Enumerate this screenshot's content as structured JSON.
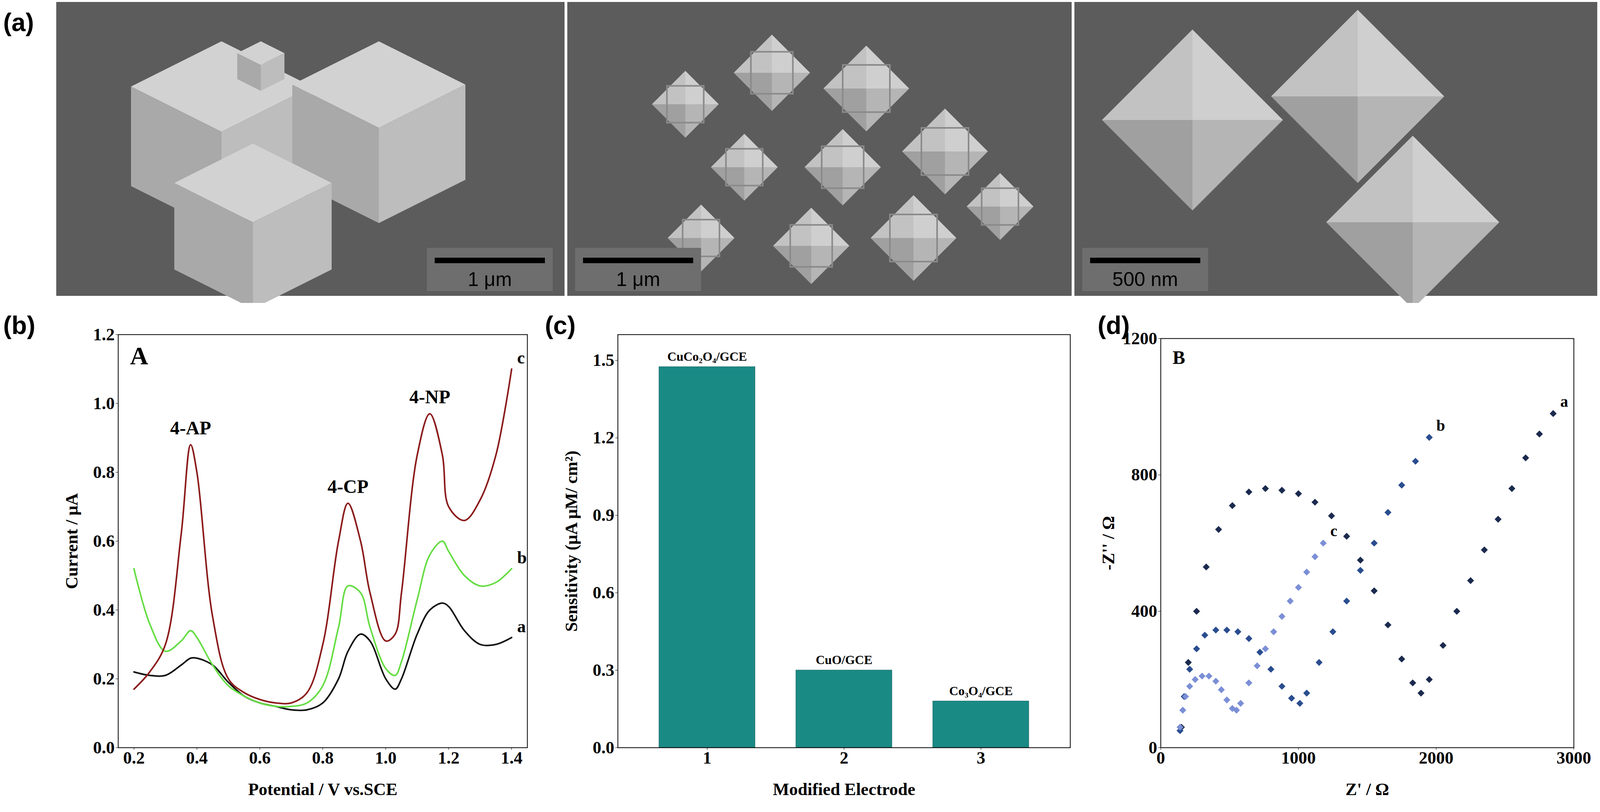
{
  "images": {
    "panel_label": "(a)",
    "scale_bars": [
      "1 μm",
      "1 μm",
      "500 nm"
    ]
  },
  "chart_data": [
    {
      "panel_label": "(b)",
      "type": "line",
      "title": "A",
      "x_label": "Potential / V vs.SCE",
      "y_label": "Current / μA",
      "line_style": "solid",
      "x": [
        0.2,
        0.25,
        0.3,
        0.35,
        0.38,
        0.4,
        0.45,
        0.5,
        0.55,
        0.6,
        0.65,
        0.7,
        0.75,
        0.8,
        0.85,
        0.88,
        0.92,
        0.95,
        1.0,
        1.03,
        1.05,
        1.1,
        1.14,
        1.18,
        1.2,
        1.25,
        1.3,
        1.35,
        1.4
      ],
      "xlim": [
        0.15,
        1.45
      ],
      "xticks": [
        0.2,
        0.4,
        0.6,
        0.8,
        {
          "value": 1,
          "label": "1.0"
        },
        1.2,
        1.4
      ],
      "ylim": [
        0,
        1.2
      ],
      "yticks": [
        {
          "value": 0,
          "label": "0.0"
        },
        0.2,
        0.4,
        0.6,
        0.8,
        {
          "value": 1,
          "label": "1.0"
        },
        1.2
      ],
      "series": [
        {
          "name": "a",
          "color": "#111111",
          "values": [
            0.22,
            0.21,
            0.21,
            0.24,
            0.26,
            0.26,
            0.24,
            0.19,
            0.15,
            0.13,
            0.12,
            0.11,
            0.11,
            0.13,
            0.2,
            0.28,
            0.33,
            0.31,
            0.2,
            0.17,
            0.2,
            0.33,
            0.4,
            0.42,
            0.41,
            0.34,
            0.3,
            0.3,
            0.32
          ]
        },
        {
          "name": "b",
          "color": "#66dd44",
          "values": [
            0.52,
            0.36,
            0.28,
            0.31,
            0.34,
            0.32,
            0.24,
            0.18,
            0.15,
            0.13,
            0.12,
            0.12,
            0.13,
            0.18,
            0.35,
            0.47,
            0.45,
            0.35,
            0.23,
            0.21,
            0.25,
            0.43,
            0.56,
            0.6,
            0.57,
            0.5,
            0.47,
            0.48,
            0.52
          ]
        },
        {
          "name": "c",
          "color": "#8b1a1a",
          "values": [
            0.17,
            0.22,
            0.3,
            0.62,
            0.88,
            0.8,
            0.38,
            0.2,
            0.16,
            0.14,
            0.13,
            0.13,
            0.16,
            0.3,
            0.6,
            0.71,
            0.6,
            0.45,
            0.31,
            0.33,
            0.45,
            0.85,
            0.97,
            0.85,
            0.7,
            0.66,
            0.72,
            0.85,
            1.1
          ]
        }
      ],
      "annotations": [
        {
          "text": "4-AP",
          "x": 0.38,
          "y": 0.88
        },
        {
          "text": "4-CP",
          "x": 0.88,
          "y": 0.71
        },
        {
          "text": "4-NP",
          "x": 1.14,
          "y": 0.97
        }
      ]
    },
    {
      "panel_label": "(c)",
      "type": "bar",
      "x_label": "Modified Electrode",
      "y_label": "Sensitivity (μA μM/ cm²)",
      "categories": [
        "1",
        "2",
        "3"
      ],
      "values": [
        1.475,
        0.3,
        0.18
      ],
      "annotations": [
        "CuCo₂O₄/GCE",
        "CuO/GCE",
        "Co₃O₄/GCE"
      ],
      "color": "#1a8a85",
      "ylim": [
        0,
        1.6
      ],
      "yticks": [
        {
          "value": 0,
          "label": "0.0"
        },
        0.3,
        0.6,
        0.9,
        1.2,
        1.5
      ]
    },
    {
      "panel_label": "(d)",
      "type": "scatter",
      "title": "B",
      "x_label": "Z' / Ω",
      "y_label": "-Z'' / Ω",
      "marker": "diamond",
      "xlim": [
        0,
        3000
      ],
      "xticks": [
        0,
        1000,
        2000,
        3000
      ],
      "ylim": [
        0,
        1200
      ],
      "yticks": [
        0,
        400,
        800,
        1200
      ],
      "series": [
        {
          "name": "a",
          "color": "#1b2a4e",
          "x": [
            150,
            200,
            260,
            330,
            420,
            520,
            640,
            760,
            880,
            1000,
            1120,
            1240,
            1350,
            1450,
            1550,
            1650,
            1750,
            1830,
            1890,
            1950,
            2050,
            2150,
            2250,
            2350,
            2450,
            2550,
            2650,
            2750,
            2850
          ],
          "values": [
            60,
            250,
            400,
            530,
            640,
            710,
            750,
            760,
            755,
            745,
            720,
            680,
            620,
            550,
            460,
            360,
            260,
            190,
            160,
            200,
            300,
            400,
            490,
            580,
            670,
            760,
            850,
            920,
            980
          ]
        },
        {
          "name": "b",
          "color": "#2a4d8f",
          "x": [
            140,
            170,
            210,
            260,
            320,
            400,
            480,
            560,
            640,
            720,
            800,
            880,
            950,
            1010,
            1060,
            1150,
            1250,
            1350,
            1450,
            1550,
            1650,
            1750,
            1850,
            1950
          ],
          "values": [
            50,
            150,
            230,
            290,
            330,
            345,
            345,
            340,
            320,
            280,
            230,
            180,
            145,
            130,
            160,
            250,
            340,
            430,
            520,
            600,
            690,
            770,
            840,
            910
          ]
        },
        {
          "name": "c",
          "color": "#7b8fd6",
          "x": [
            140,
            160,
            180,
            210,
            250,
            300,
            350,
            400,
            440,
            480,
            520,
            550,
            580,
            640,
            700,
            760,
            820,
            880,
            940,
            1000,
            1060,
            1120,
            1180
          ],
          "values": [
            60,
            110,
            150,
            180,
            200,
            210,
            210,
            195,
            170,
            140,
            115,
            110,
            130,
            190,
            240,
            290,
            340,
            385,
            430,
            470,
            515,
            560,
            600
          ]
        }
      ]
    }
  ]
}
